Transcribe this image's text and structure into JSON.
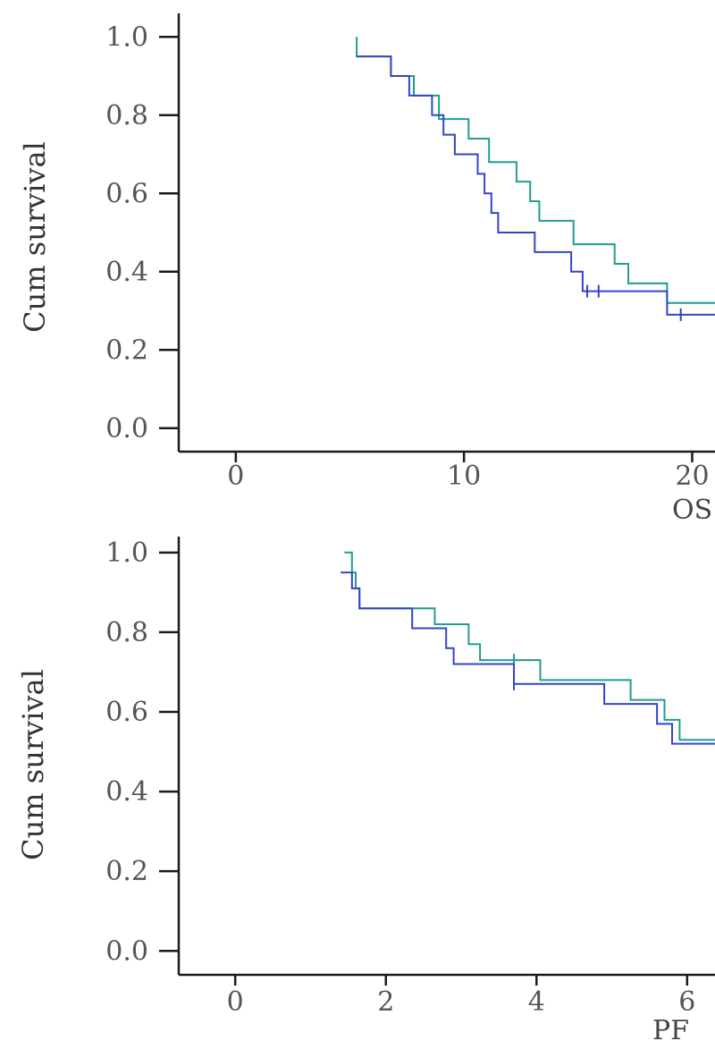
{
  "chart_data": [
    {
      "type": "line",
      "subtype": "kaplan-meier",
      "title": "",
      "ylabel": "Cum survival",
      "xlabel": "OS",
      "xlim": [
        -2.5,
        21
      ],
      "ylim": [
        -0.06,
        1.06
      ],
      "x_ticks": [
        0,
        10,
        20
      ],
      "y_ticks": [
        0.0,
        0.2,
        0.4,
        0.6,
        0.8,
        1.0
      ],
      "x_tick_labels": [
        "0",
        "10",
        "20"
      ],
      "y_tick_labels": [
        "0.0",
        "0.2",
        "0.4",
        "0.6",
        "0.8",
        "1.0"
      ],
      "series": [
        {
          "color": "#1f9e8f",
          "steps": [
            [
              5.3,
              1.0
            ],
            [
              5.3,
              0.95
            ],
            [
              6.8,
              0.95
            ],
            [
              6.8,
              0.9
            ],
            [
              7.8,
              0.9
            ],
            [
              7.8,
              0.85
            ],
            [
              8.9,
              0.85
            ],
            [
              8.9,
              0.79
            ],
            [
              10.2,
              0.79
            ],
            [
              10.2,
              0.74
            ],
            [
              11.1,
              0.74
            ],
            [
              11.1,
              0.68
            ],
            [
              12.3,
              0.68
            ],
            [
              12.3,
              0.63
            ],
            [
              12.9,
              0.63
            ],
            [
              12.9,
              0.58
            ],
            [
              13.3,
              0.58
            ],
            [
              13.3,
              0.53
            ],
            [
              14.8,
              0.53
            ],
            [
              14.8,
              0.47
            ],
            [
              16.6,
              0.47
            ],
            [
              16.6,
              0.42
            ],
            [
              17.2,
              0.42
            ],
            [
              17.2,
              0.37
            ],
            [
              18.9,
              0.37
            ],
            [
              18.9,
              0.32
            ],
            [
              21,
              0.32
            ]
          ],
          "censored": []
        },
        {
          "color": "#3344cc",
          "steps": [
            [
              5.3,
              0.95
            ],
            [
              6.8,
              0.95
            ],
            [
              6.8,
              0.9
            ],
            [
              7.6,
              0.9
            ],
            [
              7.6,
              0.85
            ],
            [
              8.6,
              0.85
            ],
            [
              8.6,
              0.8
            ],
            [
              9.1,
              0.8
            ],
            [
              9.1,
              0.75
            ],
            [
              9.6,
              0.75
            ],
            [
              9.6,
              0.7
            ],
            [
              10.6,
              0.7
            ],
            [
              10.6,
              0.65
            ],
            [
              10.9,
              0.65
            ],
            [
              10.9,
              0.6
            ],
            [
              11.2,
              0.6
            ],
            [
              11.2,
              0.55
            ],
            [
              11.5,
              0.55
            ],
            [
              11.5,
              0.5
            ],
            [
              13.1,
              0.5
            ],
            [
              13.1,
              0.45
            ],
            [
              14.7,
              0.45
            ],
            [
              14.7,
              0.4
            ],
            [
              15.2,
              0.4
            ],
            [
              15.2,
              0.35
            ],
            [
              18.9,
              0.35
            ],
            [
              18.9,
              0.29
            ],
            [
              21,
              0.29
            ]
          ],
          "censored": [
            [
              15.4,
              0.35
            ],
            [
              15.9,
              0.35
            ],
            [
              19.5,
              0.29
            ]
          ]
        }
      ]
    },
    {
      "type": "line",
      "subtype": "kaplan-meier",
      "title": "",
      "ylabel": "Cum survival",
      "xlabel": "PF",
      "xlim": [
        -0.75,
        6.37
      ],
      "ylim": [
        -0.06,
        1.04
      ],
      "x_ticks": [
        0,
        2,
        4,
        6
      ],
      "y_ticks": [
        0.0,
        0.2,
        0.4,
        0.6,
        0.8,
        1.0
      ],
      "x_tick_labels": [
        "0",
        "2",
        "4",
        "6"
      ],
      "y_tick_labels": [
        "0.0",
        "0.2",
        "0.4",
        "0.6",
        "0.8",
        "1.0"
      ],
      "series": [
        {
          "color": "#1f9e8f",
          "steps": [
            [
              1.45,
              1.0
            ],
            [
              1.55,
              1.0
            ],
            [
              1.55,
              0.95
            ],
            [
              1.6,
              0.95
            ],
            [
              1.6,
              0.91
            ],
            [
              1.65,
              0.91
            ],
            [
              1.65,
              0.86
            ],
            [
              2.65,
              0.86
            ],
            [
              2.65,
              0.82
            ],
            [
              3.1,
              0.82
            ],
            [
              3.1,
              0.77
            ],
            [
              3.25,
              0.77
            ],
            [
              3.25,
              0.73
            ],
            [
              4.05,
              0.73
            ],
            [
              4.05,
              0.68
            ],
            [
              5.25,
              0.68
            ],
            [
              5.25,
              0.63
            ],
            [
              5.7,
              0.63
            ],
            [
              5.7,
              0.58
            ],
            [
              5.9,
              0.58
            ],
            [
              5.9,
              0.53
            ],
            [
              6.37,
              0.53
            ]
          ],
          "censored": [
            [
              3.7,
              0.73
            ]
          ]
        },
        {
          "color": "#3344cc",
          "steps": [
            [
              1.4,
              0.95
            ],
            [
              1.55,
              0.95
            ],
            [
              1.55,
              0.91
            ],
            [
              1.65,
              0.91
            ],
            [
              1.65,
              0.86
            ],
            [
              2.35,
              0.86
            ],
            [
              2.35,
              0.81
            ],
            [
              2.8,
              0.81
            ],
            [
              2.8,
              0.76
            ],
            [
              2.9,
              0.76
            ],
            [
              2.9,
              0.72
            ],
            [
              3.7,
              0.72
            ],
            [
              3.7,
              0.67
            ],
            [
              4.9,
              0.67
            ],
            [
              4.9,
              0.62
            ],
            [
              5.6,
              0.62
            ],
            [
              5.6,
              0.57
            ],
            [
              5.8,
              0.57
            ],
            [
              5.8,
              0.52
            ],
            [
              6.37,
              0.52
            ]
          ],
          "censored": [
            [
              3.7,
              0.67
            ]
          ]
        }
      ]
    }
  ]
}
